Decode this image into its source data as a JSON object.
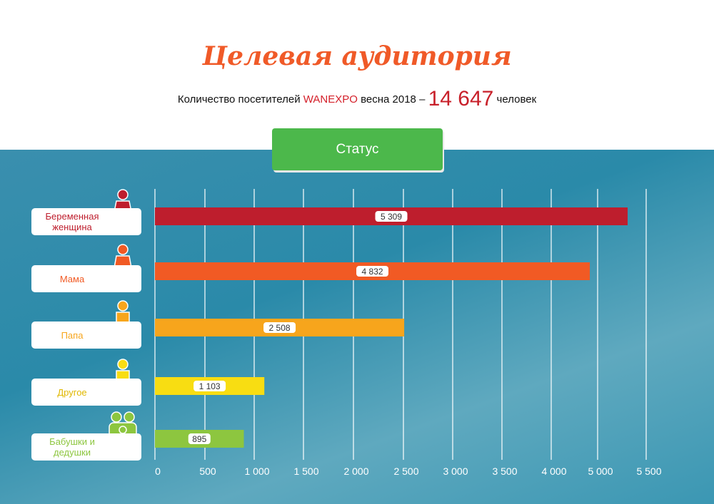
{
  "header": {
    "title": "Целевая аудитория",
    "subtitle_prefix": "Количество посетителей",
    "brand": "WANEXPO",
    "subtitle_mid": "весна 2018 –",
    "total": "14 647",
    "subtitle_suffix": "человек"
  },
  "status_button": "Статус",
  "chart_data": {
    "type": "bar",
    "orientation": "horizontal",
    "grid": true,
    "categories": [
      "Беременная женщина",
      "Мама",
      "Папа",
      "Другое",
      "Бабушки и дедушки"
    ],
    "values": [
      5309,
      4832,
      2508,
      1103,
      895
    ],
    "value_labels": [
      "5 309",
      "4 832",
      "2 508",
      "1 103",
      "895"
    ],
    "colors": [
      "#be1e2d",
      "#f15a24",
      "#f7a51c",
      "#f8dd12",
      "#8dc63f"
    ],
    "label_colors": [
      "#be1e2d",
      "#f15a24",
      "#f7a51c",
      "#e0b800",
      "#8dc63f"
    ],
    "icons": [
      "pregnant-woman-icon",
      "woman-icon",
      "man-icon",
      "person-question-icon",
      "grandparents-icon"
    ],
    "x_ticks": [
      0,
      500,
      1000,
      1500,
      2000,
      2500,
      3000,
      3500,
      4000,
      5000,
      5500
    ],
    "x_tick_labels": [
      "0",
      "500",
      "1 000",
      "1 500",
      "2 000",
      "2 500",
      "3 000",
      "3 500",
      "4 000",
      "5 000",
      "5 500"
    ]
  }
}
